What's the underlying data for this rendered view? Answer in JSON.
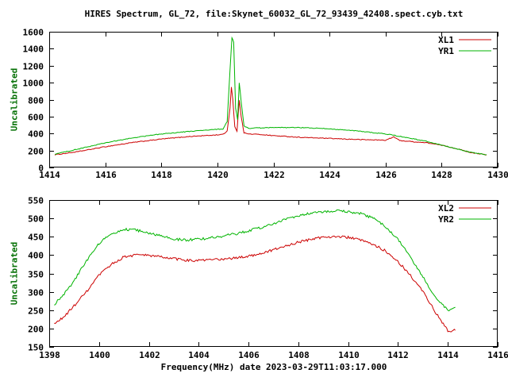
{
  "title": "HIRES Spectrum, GL_72, file:Skynet_60032_GL_72_93439_42408.spect.cyb.txt",
  "xlabel": "Frequency(MHz) date 2023-03-29T11:03:17.000",
  "colors": {
    "red": "#cc0000",
    "green": "#00b400",
    "axis": "#000000",
    "ylabel_text": "#067106"
  },
  "chart_data": [
    {
      "type": "line",
      "ylabel": "Uncalibrated",
      "xlim": [
        1414,
        1430
      ],
      "ylim": [
        0,
        1600
      ],
      "xticks": [
        1414,
        1416,
        1418,
        1420,
        1422,
        1424,
        1426,
        1428,
        1430
      ],
      "yticks": [
        0,
        200,
        400,
        600,
        800,
        1000,
        1200,
        1400,
        1600
      ],
      "legend_position": "top-right",
      "grid": false,
      "noise": 9,
      "series": [
        {
          "name": "XL1",
          "color": "#cc0000",
          "x": [
            1414.2,
            1415,
            1416,
            1417,
            1418,
            1419,
            1419.8,
            1420.2,
            1420.35,
            1420.45,
            1420.5,
            1420.55,
            1420.62,
            1420.7,
            1420.78,
            1420.85,
            1420.95,
            1421.1,
            1421.5,
            1422,
            1423,
            1424,
            1425,
            1426,
            1426.3,
            1426.5,
            1427,
            1427.5,
            1428,
            1428.5,
            1429,
            1429.6
          ],
          "y": [
            150,
            185,
            245,
            295,
            335,
            365,
            380,
            390,
            430,
            700,
            950,
            800,
            480,
            430,
            790,
            600,
            410,
            395,
            390,
            375,
            355,
            342,
            330,
            322,
            360,
            318,
            303,
            290,
            262,
            225,
            180,
            148
          ]
        },
        {
          "name": "YR1",
          "color": "#00b400",
          "x": [
            1414.2,
            1415,
            1416,
            1417,
            1418,
            1419,
            1419.8,
            1420.2,
            1420.35,
            1420.45,
            1420.52,
            1420.58,
            1420.65,
            1420.72,
            1420.78,
            1420.85,
            1420.95,
            1421.1,
            1421.5,
            1422,
            1423,
            1424,
            1425,
            1426,
            1427,
            1427.5,
            1428,
            1428.5,
            1429,
            1429.6
          ],
          "y": [
            158,
            215,
            290,
            350,
            395,
            425,
            445,
            455,
            540,
            1150,
            1530,
            1480,
            700,
            560,
            1000,
            770,
            490,
            462,
            466,
            470,
            470,
            456,
            430,
            396,
            338,
            305,
            265,
            222,
            180,
            152
          ]
        }
      ]
    },
    {
      "type": "line",
      "ylabel": "Uncalibrated",
      "xlim": [
        1398,
        1416
      ],
      "ylim": [
        150,
        550
      ],
      "xticks": [
        1398,
        1400,
        1402,
        1404,
        1406,
        1408,
        1410,
        1412,
        1414,
        1416
      ],
      "yticks": [
        150,
        200,
        250,
        300,
        350,
        400,
        450,
        500,
        550
      ],
      "legend_position": "top-right",
      "grid": false,
      "noise": 7,
      "series": [
        {
          "name": "XL2",
          "color": "#cc0000",
          "x": [
            1398.2,
            1398.6,
            1399,
            1399.5,
            1400,
            1400.5,
            1401,
            1401.5,
            1402,
            1402.5,
            1403,
            1403.5,
            1404,
            1404.5,
            1405,
            1405.5,
            1406,
            1406.5,
            1407,
            1407.5,
            1408,
            1408.5,
            1409,
            1409.5,
            1410,
            1410.5,
            1411,
            1411.5,
            1412,
            1412.5,
            1413,
            1413.5,
            1414,
            1414.3
          ],
          "y": [
            212,
            232,
            262,
            300,
            345,
            375,
            395,
            401,
            399,
            395,
            390,
            386,
            385,
            387,
            389,
            392,
            397,
            405,
            414,
            425,
            435,
            443,
            449,
            451,
            448,
            441,
            428,
            412,
            382,
            345,
            300,
            245,
            193,
            195
          ]
        },
        {
          "name": "YR2",
          "color": "#00b400",
          "x": [
            1398.2,
            1398.6,
            1399,
            1399.5,
            1400,
            1400.5,
            1401,
            1401.5,
            1402,
            1402.5,
            1403,
            1403.5,
            1404,
            1404.5,
            1405,
            1405.5,
            1406,
            1406.5,
            1407,
            1407.5,
            1408,
            1408.5,
            1409,
            1409.5,
            1410,
            1410.5,
            1411,
            1411.5,
            1412,
            1412.5,
            1413,
            1413.5,
            1414,
            1414.3
          ],
          "y": [
            265,
            295,
            330,
            385,
            432,
            458,
            470,
            468,
            460,
            451,
            444,
            441,
            443,
            447,
            452,
            458,
            466,
            475,
            486,
            497,
            507,
            514,
            518,
            520,
            519,
            513,
            500,
            478,
            442,
            395,
            340,
            285,
            250,
            258
          ]
        }
      ]
    }
  ]
}
